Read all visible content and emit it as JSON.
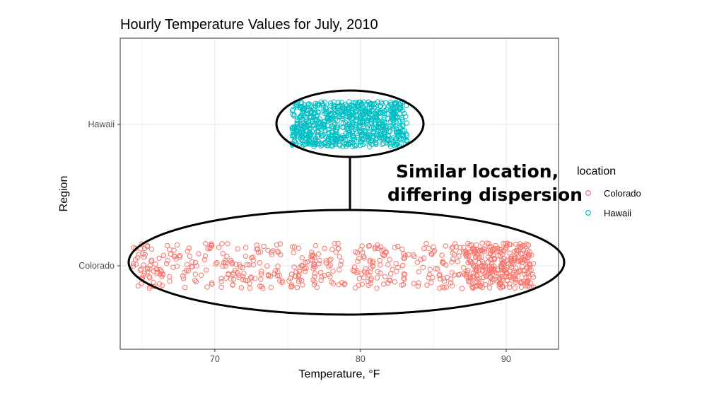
{
  "chart_data": {
    "type": "scatter",
    "title": "Hourly Temperature Values for July, 2010",
    "xlabel": "Temperature, °F",
    "ylabel": "Region",
    "xlim": [
      63.5,
      93.6
    ],
    "x_ticks": [
      70,
      80,
      90
    ],
    "x_tick_labels": [
      "70",
      "80",
      "90"
    ],
    "categories": [
      "Colorado",
      "Hawaii"
    ],
    "grid": true,
    "legend": {
      "title": "location",
      "position": "right",
      "entries": [
        "Colorado",
        "Hawaii"
      ]
    },
    "series": [
      {
        "name": "Colorado",
        "color": "#F8766D",
        "category": "Colorado",
        "x_range": [
          64.4,
          91.9
        ],
        "n_points": 744
      },
      {
        "name": "Hawaii",
        "color": "#00BFC4",
        "category": "Hawaii",
        "x_range": [
          75.3,
          83.2
        ],
        "n_points": 744
      }
    ],
    "annotations": [
      {
        "text": "Similar location,",
        "line": 1
      },
      {
        "text": "differing dispersion",
        "line": 2
      }
    ]
  }
}
